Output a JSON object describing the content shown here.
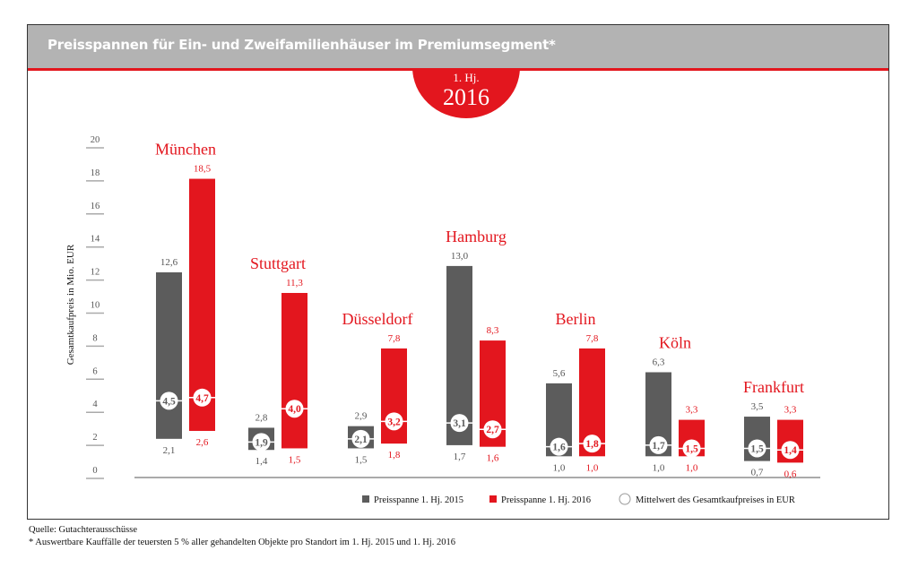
{
  "header": {
    "title": "Preisspannen für Ein- und Zweifamilienhäuser im Premiumsegment*",
    "badge_line1": "1. Hj.",
    "badge_line2": "2016"
  },
  "footer": {
    "source": "Quelle: Gutachterausschüsse",
    "note": "* Auswertbare Kauffälle der teuersten 5 % aller gehandelten Objekte pro Standort im 1. Hj. 2015 und 1. Hj. 2016"
  },
  "colors": {
    "s2015": "#5c5c5c",
    "s2016": "#e3161e",
    "label2015": "#555555"
  },
  "chart_data": {
    "type": "bar",
    "subtype": "floating-range-with-mean",
    "title": "Preisspannen für Ein- und Zweifamilienhäuser im Premiumsegment*",
    "ylabel": "Gesamtkaufpreis in Mio. EUR",
    "ylim": [
      0,
      20
    ],
    "yticks": [
      "0",
      "2",
      "4",
      "6",
      "8",
      "10",
      "12",
      "14",
      "16",
      "18",
      "20"
    ],
    "grid": false,
    "legend_position": "bottom-right",
    "legend": [
      "Preisspanne 1. Hj. 2015",
      "Preisspanne 1. Hj. 2016",
      "Mittelwert des Gesamtkaufpreises in EUR"
    ],
    "categories": [
      "München",
      "Stuttgart",
      "Düsseldorf",
      "Hamburg",
      "Berlin",
      "Köln",
      "Frankfurt"
    ],
    "series": [
      {
        "name": "Preisspanne 1. Hj. 2015",
        "min": [
          2.1,
          1.4,
          1.5,
          1.7,
          1.0,
          1.0,
          0.7
        ],
        "max": [
          12.6,
          2.8,
          2.9,
          13.0,
          5.6,
          6.3,
          3.5
        ],
        "mean": [
          4.5,
          1.9,
          2.1,
          3.1,
          1.6,
          1.7,
          1.5
        ],
        "min_labels": [
          "2,1",
          "1,4",
          "1,5",
          "1,7",
          "1,0",
          "1,0",
          "0,7"
        ],
        "max_labels": [
          "12,6",
          "2,8",
          "2,9",
          "13,0",
          "5,6",
          "6,3",
          "3,5"
        ],
        "mean_labels": [
          "4,5",
          "1,9",
          "2,1",
          "3,1",
          "1,6",
          "1,7",
          "1,5"
        ]
      },
      {
        "name": "Preisspanne 1. Hj. 2016",
        "min": [
          2.6,
          1.5,
          1.8,
          1.6,
          1.0,
          1.0,
          0.6
        ],
        "max": [
          18.5,
          11.3,
          7.8,
          8.3,
          7.8,
          3.3,
          3.3
        ],
        "mean": [
          4.7,
          4.0,
          3.2,
          2.7,
          1.8,
          1.5,
          1.4
        ],
        "min_labels": [
          "2,6",
          "1,5",
          "1,8",
          "1,6",
          "1,0",
          "1,0",
          "0,6"
        ],
        "max_labels": [
          "18,5",
          "11,3",
          "7,8",
          "8,3",
          "7,8",
          "3,3",
          "3,3"
        ],
        "mean_labels": [
          "4,7",
          "4,0",
          "3,2",
          "2,7",
          "1,8",
          "1,5",
          "1,4"
        ]
      }
    ]
  }
}
